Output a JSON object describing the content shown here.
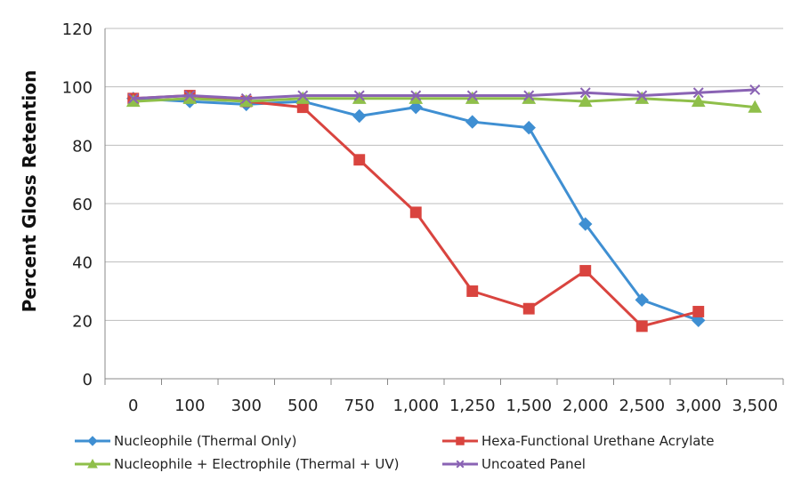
{
  "chart_data": {
    "type": "line",
    "title": "",
    "xlabel": "",
    "ylabel": "Percent Gloss Retention",
    "ylim": [
      0,
      120
    ],
    "yticks": [
      0,
      20,
      40,
      60,
      80,
      100,
      120
    ],
    "grid": true,
    "legend_position": "bottom",
    "categories": [
      "0",
      "100",
      "300",
      "500",
      "750",
      "1,000",
      "1,250",
      "1,500",
      "2,000",
      "2,500",
      "3,000",
      "3,500"
    ],
    "series": [
      {
        "name": "Nucleophile (Thermal Only)",
        "color": "#3f8fd2",
        "marker": "diamond",
        "values": [
          96,
          95,
          94,
          95,
          90,
          93,
          88,
          86,
          53,
          27,
          20,
          null
        ]
      },
      {
        "name": "Hexa-Functional Urethane Acrylate",
        "color": "#d9443f",
        "marker": "square",
        "values": [
          96,
          97,
          95,
          93,
          75,
          57,
          30,
          24,
          37,
          18,
          23,
          null
        ]
      },
      {
        "name": "Nucleophile + Electrophile (Thermal + UV)",
        "color": "#8fbf4a",
        "marker": "triangle",
        "values": [
          95,
          96,
          95,
          96,
          96,
          96,
          96,
          96,
          95,
          96,
          95,
          93
        ]
      },
      {
        "name": "Uncoated Panel",
        "color": "#8a63b4",
        "marker": "x",
        "values": [
          96,
          97,
          96,
          97,
          97,
          97,
          97,
          97,
          98,
          97,
          98,
          99
        ]
      }
    ]
  }
}
